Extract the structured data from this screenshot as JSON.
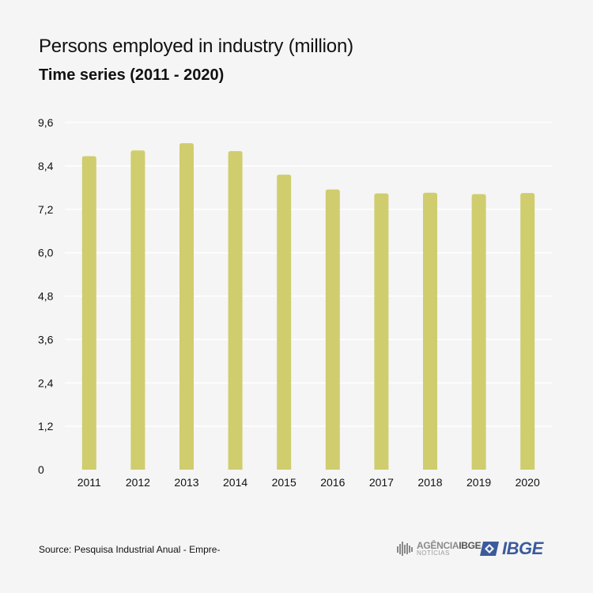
{
  "header": {
    "title": "Persons employed in industry (million)",
    "subtitle": "Time series (2011 - 2020)"
  },
  "footer": {
    "source": "Source: Pesquisa Industrial Anual - Empre-",
    "agencia_logo_text_1": "AGÊNCIA",
    "agencia_logo_text_2": "IBGE",
    "agencia_logo_text_3": "NOTÍCIAS",
    "ibge_logo_text": "IBGE"
  },
  "colors": {
    "bar": "#cfcd6e",
    "grid": "#ffffff",
    "background": "#f5f5f5",
    "ibge_blue": "#3b5b9c"
  },
  "chart_data": {
    "type": "bar",
    "categories": [
      "2011",
      "2012",
      "2013",
      "2014",
      "2015",
      "2016",
      "2017",
      "2018",
      "2019",
      "2020"
    ],
    "values": [
      8.67,
      8.83,
      9.03,
      8.81,
      8.16,
      7.75,
      7.64,
      7.66,
      7.62,
      7.65
    ],
    "ylim": [
      0,
      9.6
    ],
    "yticks": [
      "0",
      "1,2",
      "2,4",
      "3,6",
      "4,8",
      "6,0",
      "7,2",
      "8,4",
      "9,6"
    ],
    "grid": true
  }
}
